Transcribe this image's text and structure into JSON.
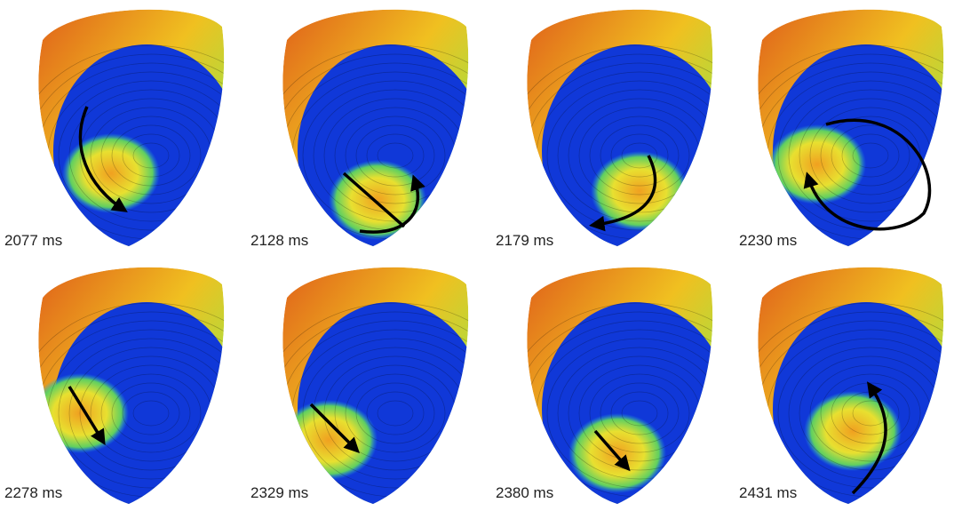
{
  "panels": [
    {
      "label": "2077 ms"
    },
    {
      "label": "2128 ms"
    },
    {
      "label": "2179 ms"
    },
    {
      "label": "2230 ms"
    },
    {
      "label": "2278 ms"
    },
    {
      "label": "2329 ms"
    },
    {
      "label": "2380 ms"
    },
    {
      "label": "2431 ms"
    }
  ]
}
